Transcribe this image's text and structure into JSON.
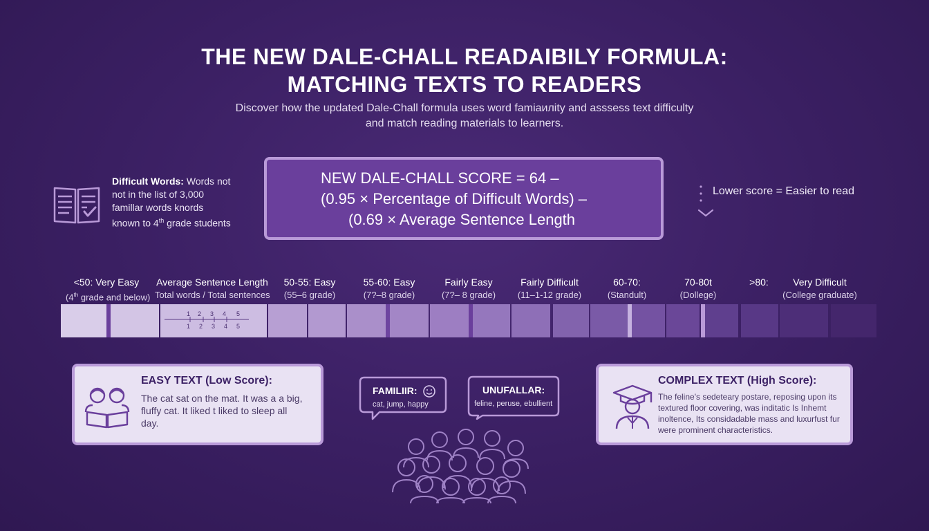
{
  "header": {
    "title_line1": "THE NEW DALE-CHALL READAIBILY FORMULA:",
    "title_line2": "MATCHING TEXTS TO READERS",
    "subtitle_line1": "Discover how the updated Dale-Chall formula uses word famiaилity and asssess text difficulty",
    "subtitle_line2": "and match reading materials to learners."
  },
  "definition": {
    "term": "Difficult Words:",
    "text_1": " Words not",
    "text_2": "not in the list of 3,000",
    "text_3": "famillar words knords",
    "text_4_pre": "known to 4",
    "text_4_sup": "th",
    "text_4_post": " grade students",
    "icon": "book-checklist-icon"
  },
  "formula": {
    "line1": "NEW DALE-CHALL SCORE = 64 –",
    "line2": "(0.95 × Percentage of Difficult Words) –",
    "line3": "(0.69 × Average Sentence Length"
  },
  "note": {
    "text": "Lower score = Easier to read",
    "icon": "chevron-down-icon"
  },
  "scale": {
    "labels": [
      {
        "a": "<50: Very Easy",
        "b_pre": "(4",
        "b_sup": "th",
        "b_post": " grade and below)"
      },
      {
        "a": "Average Sentence Length",
        "b_pre": "Total words / Total sentences",
        "b_sup": "",
        "b_post": ""
      },
      {
        "a": "50-55: Easy",
        "b_pre": "(55–6 grade)",
        "b_sup": "",
        "b_post": ""
      },
      {
        "a": "55-60: Easy",
        "b_pre": "(7?–8 grade)",
        "b_sup": "",
        "b_post": ""
      },
      {
        "a": "Fairly Easy",
        "b_pre": "(7?– 8 grade)",
        "b_sup": "",
        "b_post": ""
      },
      {
        "a": "Fairly Difficult",
        "b_pre": "(11–1-12 grade)",
        "b_sup": "",
        "b_post": ""
      },
      {
        "a": "60-70:",
        "b_pre": "(Standult)",
        "b_sup": "",
        "b_post": ""
      },
      {
        "a": "70-80t",
        "b_pre": "(Dollege)",
        "b_sup": "",
        "b_post": ""
      },
      {
        "a": ">80:",
        "b_pre": "",
        "b_sup": "",
        "b_post": ""
      },
      {
        "a": "Very Difficult",
        "b_pre": "(College graduate)",
        "b_sup": "",
        "b_post": ""
      }
    ],
    "ruler_top": [
      "1",
      "2",
      "3",
      "4",
      "5"
    ],
    "ruler_bottom": [
      "1",
      "2",
      "3",
      "4",
      "5"
    ]
  },
  "easy": {
    "heading": "EASY TEXT (Low Score):",
    "text": "The cat sat on the mat. It was a a big, fluffy cat. It liked t liked to sleep all day.",
    "icon": "children-reading-icon"
  },
  "complex": {
    "heading": "COMPLEX TEXT (High Score):",
    "text": "The feline's sedeteary postare, reposing upon its textured floor covering, was inditatic Is Inhemt inoltence, Its considadable mass and luxurfust fur were prominent characteristics.",
    "icon": "graduate-icon"
  },
  "bubbles": {
    "familiar_heading": "FAMILIIR:",
    "familiar_text": "cat, jump, happy",
    "unfamiliar_heading": "UNUFALLAR:",
    "unfamiliar_text": "feline, peruse, ebullient",
    "crowd_icon": "group-of-readers-icon",
    "smiley_icon": "smiley-icon"
  },
  "colors": {
    "background": "#3a1f62",
    "formula_box": "#6a3f9c",
    "box_border": "#b99ad8",
    "card_fill": "#e9e2f3"
  }
}
